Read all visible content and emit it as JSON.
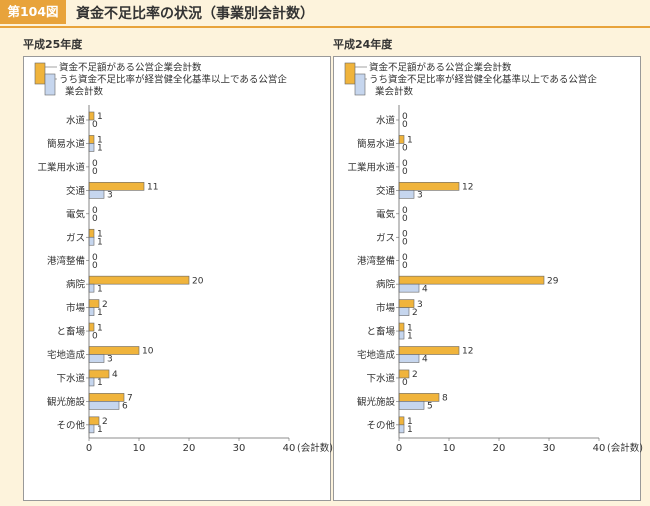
{
  "header": {
    "badge": "第104図",
    "title": "資金不足比率の状況（事業別会計数）"
  },
  "colors": {
    "primary": "#f0b43c",
    "secondary": "#c6d6ee",
    "stroke": "#666666",
    "accent": "#e8a33b"
  },
  "legend": {
    "primary": "資金不足額がある公営企業会計数",
    "secondary_line1": "うち資金不足比率が経営健全化基準以上である公営企",
    "secondary_line2": "業会計数"
  },
  "axis": {
    "unit": "(会計数)"
  },
  "chart_data": [
    {
      "type": "bar",
      "title": "平成25年度",
      "categories": [
        "水道",
        "簡易水道",
        "工業用水道",
        "交通",
        "電気",
        "ガス",
        "港湾整備",
        "病院",
        "市場",
        "と畜場",
        "宅地造成",
        "下水道",
        "観光施設",
        "その他"
      ],
      "series": [
        {
          "name": "資金不足額がある公営企業会計数",
          "values": [
            1,
            1,
            0,
            11,
            0,
            1,
            0,
            20,
            2,
            1,
            10,
            4,
            7,
            2
          ]
        },
        {
          "name": "うち資金不足比率が経営健全化基準以上である公営企業会計数",
          "values": [
            0,
            1,
            0,
            3,
            0,
            1,
            0,
            1,
            1,
            0,
            3,
            1,
            6,
            1
          ]
        }
      ],
      "xlim": [
        0,
        40
      ],
      "xticks": [
        0,
        10,
        20,
        30,
        40
      ],
      "orientation": "horizontal"
    },
    {
      "type": "bar",
      "title": "平成24年度",
      "categories": [
        "水道",
        "簡易水道",
        "工業用水道",
        "交通",
        "電気",
        "ガス",
        "港湾整備",
        "病院",
        "市場",
        "と畜場",
        "宅地造成",
        "下水道",
        "観光施設",
        "その他"
      ],
      "series": [
        {
          "name": "資金不足額がある公営企業会計数",
          "values": [
            0,
            1,
            0,
            12,
            0,
            0,
            0,
            29,
            3,
            1,
            12,
            2,
            8,
            1
          ]
        },
        {
          "name": "うち資金不足比率が経営健全化基準以上である公営企業会計数",
          "values": [
            0,
            0,
            0,
            3,
            0,
            0,
            0,
            4,
            2,
            1,
            4,
            0,
            5,
            1
          ]
        }
      ],
      "xlim": [
        0,
        40
      ],
      "xticks": [
        0,
        10,
        20,
        30,
        40
      ],
      "orientation": "horizontal"
    }
  ]
}
